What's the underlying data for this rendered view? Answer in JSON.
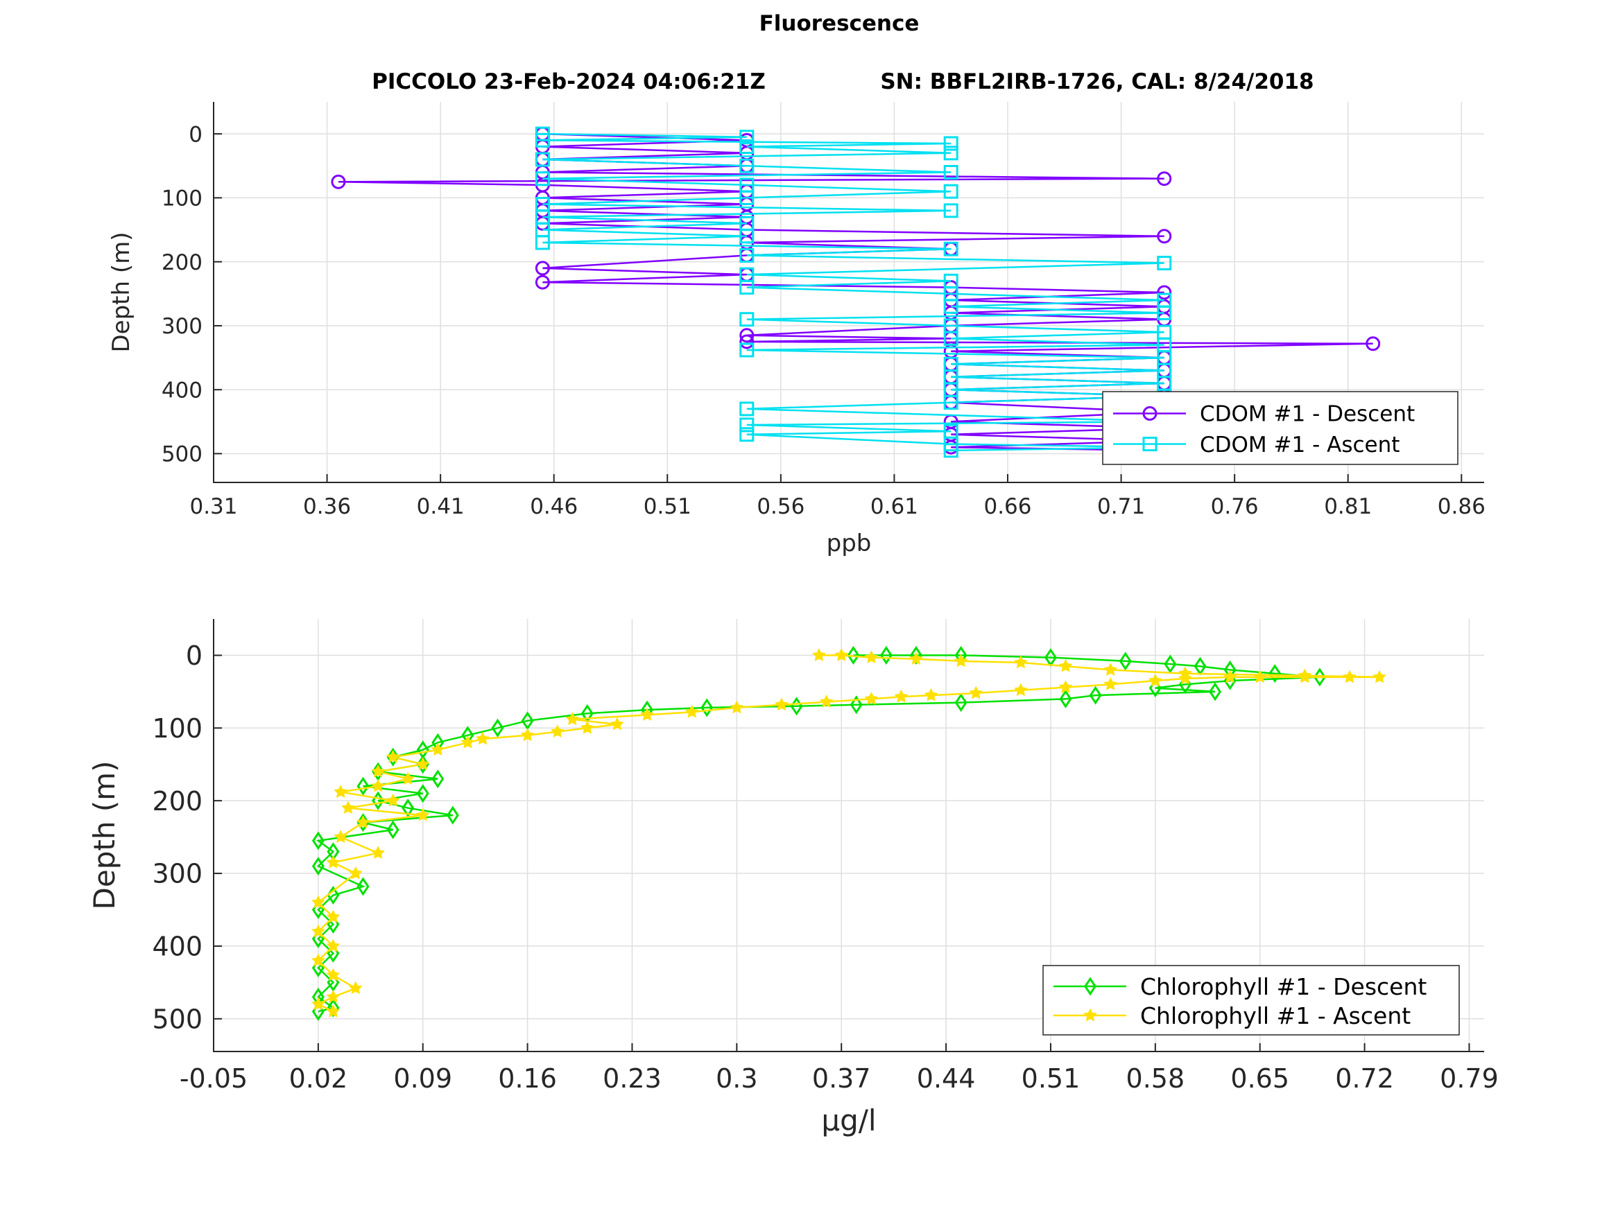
{
  "figure": {
    "title": "Fluorescence",
    "subtitle_left": "PICCOLO 23-Feb-2024 04:06:21Z",
    "subtitle_right": "SN: BBFL2IRB-1726, CAL: 8/24/2018"
  },
  "chart_data": [
    {
      "type": "line",
      "xlabel": "ppb",
      "ylabel": "Depth (m)",
      "xlim": [
        0.31,
        0.87
      ],
      "ylim": [
        -50,
        545
      ],
      "y_reversed": true,
      "xticks": [
        "0.31",
        "0.36",
        "0.41",
        "0.46",
        "0.51",
        "0.56",
        "0.61",
        "0.66",
        "0.71",
        "0.76",
        "0.81",
        "0.86"
      ],
      "yticks": [
        "0",
        "100",
        "200",
        "300",
        "400",
        "500"
      ],
      "grid": true,
      "legend_position": "bottom-right",
      "legend": [
        "CDOM #1 - Descent",
        "CDOM #1 - Ascent"
      ],
      "series": [
        {
          "name": "CDOM #1 - Descent",
          "color": "#8000ff",
          "marker": "circle",
          "points": [
            [
              0.455,
              0
            ],
            [
              0.545,
              10
            ],
            [
              0.455,
              20
            ],
            [
              0.545,
              30
            ],
            [
              0.455,
              40
            ],
            [
              0.545,
              50
            ],
            [
              0.455,
              60
            ],
            [
              0.729,
              70
            ],
            [
              0.365,
              75
            ],
            [
              0.455,
              80
            ],
            [
              0.545,
              90
            ],
            [
              0.455,
              100
            ],
            [
              0.545,
              110
            ],
            [
              0.455,
              120
            ],
            [
              0.545,
              130
            ],
            [
              0.455,
              140
            ],
            [
              0.545,
              150
            ],
            [
              0.729,
              160
            ],
            [
              0.545,
              170
            ],
            [
              0.635,
              180
            ],
            [
              0.545,
              190
            ],
            [
              0.455,
              210
            ],
            [
              0.545,
              220
            ],
            [
              0.455,
              232
            ],
            [
              0.635,
              240
            ],
            [
              0.729,
              248
            ],
            [
              0.635,
              260
            ],
            [
              0.729,
              270
            ],
            [
              0.635,
              280
            ],
            [
              0.729,
              290
            ],
            [
              0.635,
              300
            ],
            [
              0.545,
              315
            ],
            [
              0.635,
              320
            ],
            [
              0.545,
              325
            ],
            [
              0.821,
              328
            ],
            [
              0.635,
              340
            ],
            [
              0.729,
              350
            ],
            [
              0.635,
              360
            ],
            [
              0.729,
              370
            ],
            [
              0.635,
              380
            ],
            [
              0.729,
              390
            ],
            [
              0.635,
              400
            ],
            [
              0.729,
              410
            ],
            [
              0.635,
              420
            ],
            [
              0.728,
              435
            ],
            [
              0.635,
              450
            ],
            [
              0.729,
              460
            ],
            [
              0.635,
              470
            ],
            [
              0.729,
              480
            ],
            [
              0.635,
              490
            ],
            [
              0.729,
              495
            ]
          ]
        },
        {
          "name": "CDOM #1 - Ascent",
          "color": "#00e0f0",
          "marker": "square",
          "points": [
            [
              0.635,
              495
            ],
            [
              0.729,
              490
            ],
            [
              0.635,
              485
            ],
            [
              0.545,
              470
            ],
            [
              0.635,
              465
            ],
            [
              0.545,
              455
            ],
            [
              0.729,
              450
            ],
            [
              0.545,
              430
            ],
            [
              0.635,
              420
            ],
            [
              0.729,
              410
            ],
            [
              0.635,
              400
            ],
            [
              0.729,
              390
            ],
            [
              0.635,
              380
            ],
            [
              0.729,
              370
            ],
            [
              0.635,
              360
            ],
            [
              0.729,
              350
            ],
            [
              0.545,
              338
            ],
            [
              0.729,
              330
            ],
            [
              0.635,
              320
            ],
            [
              0.729,
              310
            ],
            [
              0.635,
              300
            ],
            [
              0.545,
              290
            ],
            [
              0.729,
              280
            ],
            [
              0.635,
              270
            ],
            [
              0.729,
              260
            ],
            [
              0.635,
              250
            ],
            [
              0.545,
              240
            ],
            [
              0.635,
              230
            ],
            [
              0.545,
              220
            ],
            [
              0.729,
              202
            ],
            [
              0.545,
              190
            ],
            [
              0.635,
              180
            ],
            [
              0.455,
              170
            ],
            [
              0.545,
              160
            ],
            [
              0.455,
              150
            ],
            [
              0.545,
              140
            ],
            [
              0.455,
              130
            ],
            [
              0.635,
              120
            ],
            [
              0.455,
              110
            ],
            [
              0.545,
              100
            ],
            [
              0.635,
              90
            ],
            [
              0.545,
              80
            ],
            [
              0.455,
              70
            ],
            [
              0.635,
              60
            ],
            [
              0.545,
              50
            ],
            [
              0.455,
              40
            ],
            [
              0.635,
              30
            ],
            [
              0.545,
              20
            ],
            [
              0.635,
              15
            ],
            [
              0.455,
              10
            ],
            [
              0.545,
              5
            ],
            [
              0.455,
              0
            ]
          ]
        }
      ]
    },
    {
      "type": "line",
      "xlabel": "μg/l",
      "ylabel": "Depth (m)",
      "xlim": [
        -0.05,
        0.8
      ],
      "ylim": [
        -50,
        545
      ],
      "y_reversed": true,
      "xticks": [
        "-0.05",
        "0.02",
        "0.09",
        "0.16",
        "0.23",
        "0.3",
        "0.37",
        "0.44",
        "0.51",
        "0.58",
        "0.65",
        "0.72",
        "0.79"
      ],
      "yticks": [
        "0",
        "100",
        "200",
        "300",
        "400",
        "500"
      ],
      "grid": true,
      "legend_position": "bottom-right",
      "legend": [
        "Chlorophyll #1 - Descent",
        "Chlorophyll #1 - Ascent"
      ],
      "series": [
        {
          "name": "Chlorophyll #1 - Descent",
          "color": "#00e000",
          "marker": "diamond",
          "points": [
            [
              0.378,
              0
            ],
            [
              0.4,
              0
            ],
            [
              0.42,
              0
            ],
            [
              0.45,
              0
            ],
            [
              0.51,
              3
            ],
            [
              0.56,
              8
            ],
            [
              0.59,
              12
            ],
            [
              0.61,
              15
            ],
            [
              0.63,
              20
            ],
            [
              0.66,
              25
            ],
            [
              0.69,
              30
            ],
            [
              0.63,
              35
            ],
            [
              0.6,
              40
            ],
            [
              0.58,
              45
            ],
            [
              0.62,
              50
            ],
            [
              0.54,
              55
            ],
            [
              0.52,
              60
            ],
            [
              0.45,
              65
            ],
            [
              0.38,
              68
            ],
            [
              0.34,
              70
            ],
            [
              0.28,
              72
            ],
            [
              0.24,
              75
            ],
            [
              0.2,
              80
            ],
            [
              0.16,
              90
            ],
            [
              0.14,
              100
            ],
            [
              0.12,
              110
            ],
            [
              0.1,
              120
            ],
            [
              0.09,
              130
            ],
            [
              0.07,
              140
            ],
            [
              0.09,
              150
            ],
            [
              0.06,
              160
            ],
            [
              0.1,
              170
            ],
            [
              0.05,
              180
            ],
            [
              0.09,
              190
            ],
            [
              0.06,
              200
            ],
            [
              0.08,
              210
            ],
            [
              0.11,
              220
            ],
            [
              0.05,
              230
            ],
            [
              0.07,
              240
            ],
            [
              0.02,
              255
            ],
            [
              0.03,
              270
            ],
            [
              0.02,
              290
            ],
            [
              0.05,
              318
            ],
            [
              0.03,
              330
            ],
            [
              0.02,
              350
            ],
            [
              0.03,
              370
            ],
            [
              0.02,
              390
            ],
            [
              0.03,
              410
            ],
            [
              0.02,
              430
            ],
            [
              0.03,
              450
            ],
            [
              0.02,
              470
            ],
            [
              0.03,
              485
            ],
            [
              0.02,
              490
            ]
          ]
        },
        {
          "name": "Chlorophyll #1 - Ascent",
          "color": "#ffe000",
          "marker": "star",
          "points": [
            [
              0.03,
              490
            ],
            [
              0.02,
              480
            ],
            [
              0.03,
              470
            ],
            [
              0.045,
              458
            ],
            [
              0.03,
              440
            ],
            [
              0.02,
              420
            ],
            [
              0.03,
              400
            ],
            [
              0.02,
              380
            ],
            [
              0.03,
              360
            ],
            [
              0.02,
              340
            ],
            [
              0.045,
              300
            ],
            [
              0.03,
              285
            ],
            [
              0.06,
              272
            ],
            [
              0.035,
              250
            ],
            [
              0.05,
              230
            ],
            [
              0.09,
              220
            ],
            [
              0.04,
              210
            ],
            [
              0.07,
              200
            ],
            [
              0.035,
              188
            ],
            [
              0.06,
              180
            ],
            [
              0.08,
              170
            ],
            [
              0.06,
              160
            ],
            [
              0.09,
              150
            ],
            [
              0.07,
              140
            ],
            [
              0.1,
              130
            ],
            [
              0.12,
              120
            ],
            [
              0.13,
              115
            ],
            [
              0.16,
              110
            ],
            [
              0.18,
              105
            ],
            [
              0.2,
              100
            ],
            [
              0.22,
              95
            ],
            [
              0.19,
              88
            ],
            [
              0.24,
              82
            ],
            [
              0.27,
              78
            ],
            [
              0.3,
              72
            ],
            [
              0.33,
              68
            ],
            [
              0.36,
              64
            ],
            [
              0.39,
              60
            ],
            [
              0.41,
              57
            ],
            [
              0.43,
              55
            ],
            [
              0.46,
              52
            ],
            [
              0.49,
              48
            ],
            [
              0.52,
              44
            ],
            [
              0.55,
              40
            ],
            [
              0.58,
              35
            ],
            [
              0.6,
              32
            ],
            [
              0.63,
              30
            ],
            [
              0.65,
              30
            ],
            [
              0.68,
              30
            ],
            [
              0.71,
              30
            ],
            [
              0.73,
              30
            ],
            [
              0.68,
              28
            ],
            [
              0.6,
              25
            ],
            [
              0.55,
              20
            ],
            [
              0.52,
              15
            ],
            [
              0.49,
              10
            ],
            [
              0.45,
              8
            ],
            [
              0.42,
              5
            ],
            [
              0.39,
              3
            ],
            [
              0.37,
              0
            ],
            [
              0.355,
              0
            ]
          ]
        }
      ]
    }
  ]
}
